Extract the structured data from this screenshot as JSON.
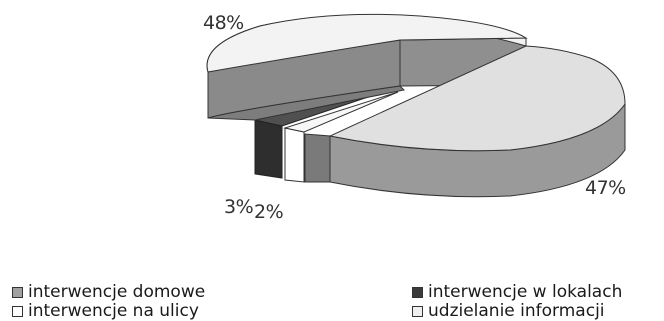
{
  "chart_data": {
    "type": "pie",
    "style": "3d-exploded",
    "categories": [
      "interwencje domowe",
      "interwencje w lokalach",
      "interwencje na ulicy",
      "udzielanie informacji"
    ],
    "values": [
      47,
      3,
      2,
      48
    ],
    "labels": [
      "47%",
      "3%",
      "2%",
      "48%"
    ],
    "colors": [
      "#a0a0a0",
      "#3a3a3a",
      "#ffffff",
      "#efefef"
    ],
    "legend_position": "bottom"
  }
}
